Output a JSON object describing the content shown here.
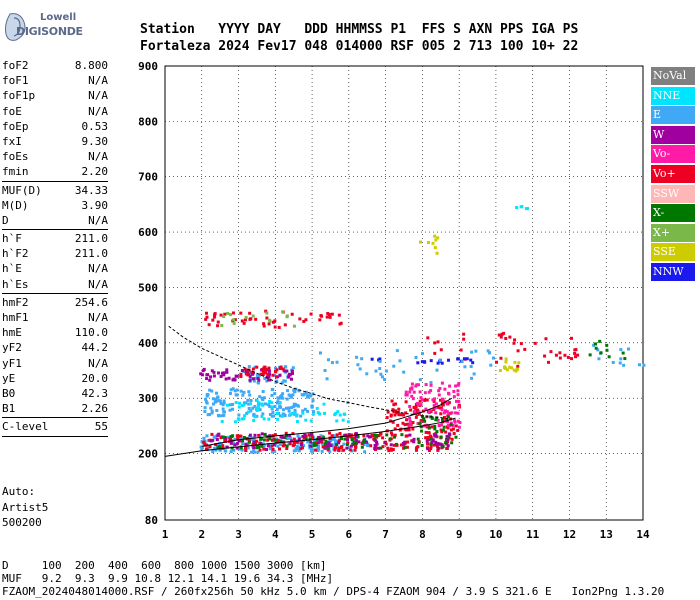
{
  "logo": {
    "line1": "Lowell",
    "line2": "DIGISONDE"
  },
  "header": {
    "line1": "Station   YYYY DAY   DDD HHMMSS P1  FFS S AXN PPS IGA PS",
    "line2": "Fortaleza 2024 Fev17 048 014000 RSF 005 2 713 100 10+ 22"
  },
  "params": {
    "group1": [
      {
        "k": "foF2",
        "v": "8.800"
      },
      {
        "k": "foF1",
        "v": "N/A"
      },
      {
        "k": "foF1p",
        "v": "N/A"
      },
      {
        "k": "foE",
        "v": "N/A"
      },
      {
        "k": "foEp",
        "v": "0.53"
      },
      {
        "k": "fxI",
        "v": "9.30"
      },
      {
        "k": "foEs",
        "v": "N/A"
      },
      {
        "k": "fmin",
        "v": "2.20"
      }
    ],
    "group2": [
      {
        "k": "MUF(D)",
        "v": "34.33"
      },
      {
        "k": "M(D)",
        "v": "3.90"
      },
      {
        "k": "D",
        "v": "N/A"
      }
    ],
    "group3": [
      {
        "k": "h`F",
        "v": "211.0"
      },
      {
        "k": "h`F2",
        "v": "211.0"
      },
      {
        "k": "h`E",
        "v": "N/A"
      },
      {
        "k": "h`Es",
        "v": "N/A"
      }
    ],
    "group4": [
      {
        "k": "hmF2",
        "v": "254.6"
      },
      {
        "k": "hmF1",
        "v": "N/A"
      },
      {
        "k": "hmE",
        "v": "110.0"
      },
      {
        "k": "yF2",
        "v": "44.2"
      },
      {
        "k": "yF1",
        "v": "N/A"
      },
      {
        "k": "yE",
        "v": "20.0"
      },
      {
        "k": "B0",
        "v": "42.3"
      },
      {
        "k": "B1",
        "v": "2.26"
      }
    ],
    "group5": [
      {
        "k": "C-level",
        "v": "55"
      }
    ]
  },
  "auto": {
    "line1": "Auto:",
    "line2": "Artist5",
    "line3": "500200"
  },
  "footer": {
    "line1": "D     100  200  400  600  800 1000 1500 3000 [km]",
    "line2": "MUF   9.2  9.3  9.9 10.8 12.1 14.1 19.6 34.3 [MHz]",
    "line3": "FZAOM_2024048014000.RSF / 260fx256h 50 kHz 5.0 km / DPS-4 FZAOM 904 / 3.9 S 321.6 E   Ion2Png 1.3.20"
  },
  "legend": [
    {
      "label": "NoVal",
      "color": "#808080"
    },
    {
      "label": "NNE",
      "color": "#00e5ff"
    },
    {
      "label": "E",
      "color": "#3fa9f5"
    },
    {
      "label": "W",
      "color": "#a0009f"
    },
    {
      "label": "Vo-",
      "color": "#ff1aa8"
    },
    {
      "label": "Vo+",
      "color": "#ee0022"
    },
    {
      "label": "SSW",
      "color": "#ffb6b6"
    },
    {
      "label": "X-",
      "color": "#007800"
    },
    {
      "label": "X+",
      "color": "#7ab84a"
    },
    {
      "label": "SSE",
      "color": "#cccc00"
    },
    {
      "label": "NNW",
      "color": "#1a1aee"
    }
  ],
  "chart_data": {
    "type": "scatter",
    "xlim": [
      1,
      14
    ],
    "ylim": [
      80,
      900
    ],
    "x_ticks": [
      "1",
      "2",
      "3",
      "4",
      "5",
      "6",
      "7",
      "8",
      "9",
      "10",
      "11",
      "12",
      "13",
      "14"
    ],
    "y_ticks": [
      "80",
      "200",
      "300",
      "400",
      "500",
      "600",
      "700",
      "800",
      "900"
    ],
    "grid": true,
    "legend_placement": "right",
    "clusters": [
      {
        "series": "E",
        "x": [
          1.9,
          6.5
        ],
        "y": [
          205,
          235
        ],
        "n": 200
      },
      {
        "series": "Vo+",
        "x": [
          2.0,
          8.9
        ],
        "y": [
          208,
          240
        ],
        "n": 200
      },
      {
        "series": "X-",
        "x": [
          2.3,
          8.9
        ],
        "y": [
          212,
          238
        ],
        "n": 80
      },
      {
        "series": "W",
        "x": [
          2.2,
          8.9
        ],
        "y": [
          210,
          240
        ],
        "n": 90
      },
      {
        "series": "E",
        "x": [
          2.0,
          5.0
        ],
        "y": [
          270,
          320
        ],
        "n": 160
      },
      {
        "series": "NNE",
        "x": [
          2.5,
          6.0
        ],
        "y": [
          260,
          300
        ],
        "n": 60
      },
      {
        "series": "E",
        "x": [
          3.0,
          4.5
        ],
        "y": [
          330,
          360
        ],
        "n": 40
      },
      {
        "series": "W",
        "x": [
          1.9,
          4.5
        ],
        "y": [
          335,
          355
        ],
        "n": 60
      },
      {
        "series": "Vo+",
        "x": [
          3.0,
          4.2
        ],
        "y": [
          340,
          360
        ],
        "n": 30
      },
      {
        "series": "Vo+",
        "x": [
          2.0,
          5.8
        ],
        "y": [
          430,
          460
        ],
        "n": 50
      },
      {
        "series": "X+",
        "x": [
          2.5,
          4.5
        ],
        "y": [
          430,
          460
        ],
        "n": 15
      },
      {
        "series": "Vo+",
        "x": [
          7.0,
          9.0
        ],
        "y": [
          240,
          300
        ],
        "n": 100
      },
      {
        "series": "Vo-",
        "x": [
          7.5,
          9.0
        ],
        "y": [
          250,
          330
        ],
        "n": 90
      },
      {
        "series": "X-",
        "x": [
          7.8,
          8.8
        ],
        "y": [
          240,
          270
        ],
        "n": 20
      },
      {
        "series": "Vo+",
        "x": [
          8.0,
          12.2
        ],
        "y": [
          360,
          420
        ],
        "n": 40
      },
      {
        "series": "SSE",
        "x": [
          10.0,
          10.6
        ],
        "y": [
          350,
          380
        ],
        "n": 15
      },
      {
        "series": "NNW",
        "x": [
          6.5,
          9.5
        ],
        "y": [
          365,
          375
        ],
        "n": 20
      },
      {
        "series": "E",
        "x": [
          5.0,
          10.0
        ],
        "y": [
          330,
          390
        ],
        "n": 40
      },
      {
        "series": "NNE",
        "x": [
          10.5,
          11.2
        ],
        "y": [
          640,
          650
        ],
        "n": 5
      },
      {
        "series": "SSE",
        "x": [
          7.9,
          8.4
        ],
        "y": [
          560,
          610
        ],
        "n": 8
      },
      {
        "series": "E",
        "x": [
          12.0,
          14.0
        ],
        "y": [
          360,
          400
        ],
        "n": 12
      },
      {
        "series": "X-",
        "x": [
          12.5,
          13.5
        ],
        "y": [
          370,
          410
        ],
        "n": 10
      }
    ],
    "lines": [
      {
        "name": "dashed-trace",
        "x": [
          1.1,
          1.5,
          2.0,
          2.5,
          3.0,
          3.5,
          4.0,
          4.5,
          5.0,
          5.5,
          6.0,
          6.5,
          7.0,
          7.5,
          8.0,
          8.5,
          8.8
        ],
        "y": [
          430,
          410,
          390,
          375,
          360,
          345,
          330,
          318,
          308,
          298,
          292,
          285,
          279,
          273,
          268,
          265,
          262
        ]
      },
      {
        "name": "solid-trace",
        "x": [
          1.0,
          2.0,
          3.0,
          4.0,
          5.0,
          6.0,
          7.0,
          7.5,
          8.0,
          8.5,
          8.9
        ],
        "y": [
          195,
          205,
          212,
          219,
          225,
          232,
          240,
          245,
          250,
          256,
          264
        ]
      },
      {
        "name": "profile-trace",
        "x": [
          2.0,
          3.0,
          4.0,
          5.0,
          6.0,
          7.0,
          7.5,
          8.0,
          8.5,
          8.8
        ],
        "y": [
          213,
          225,
          232,
          238,
          245,
          255,
          265,
          275,
          288,
          300
        ]
      }
    ]
  }
}
